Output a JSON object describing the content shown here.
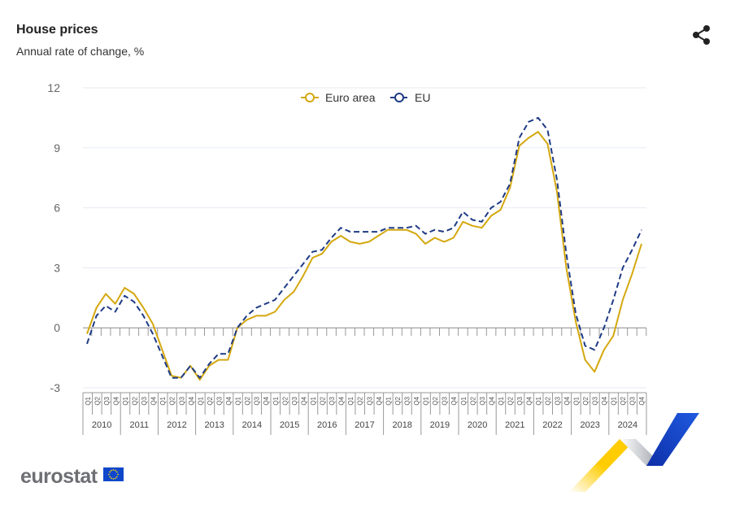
{
  "header": {
    "title": "House prices",
    "subtitle": "Annual rate of change, %"
  },
  "share_icon": "share-icon",
  "logo": {
    "text": "eurostat"
  },
  "colors": {
    "euro_area": "#d4a80f",
    "eu": "#1f3b85",
    "grid": "#e6eaf2",
    "axis": "#888888"
  },
  "chart_data": {
    "type": "line",
    "title": "House prices",
    "subtitle": "Annual rate of change, %",
    "xlabel": "",
    "ylabel": "",
    "ylim": [
      -3,
      12
    ],
    "yticks": [
      -3,
      0,
      3,
      6,
      9,
      12
    ],
    "grid": true,
    "legend_position": "top-center",
    "years": [
      "2010",
      "2011",
      "2012",
      "2013",
      "2014",
      "2015",
      "2016",
      "2017",
      "2018",
      "2019",
      "2020",
      "2021",
      "2022",
      "2023",
      "2024"
    ],
    "quarters": [
      "Q1",
      "Q2",
      "Q3",
      "Q4"
    ],
    "series": [
      {
        "name": "Euro area",
        "style": "solid",
        "values": [
          -0.3,
          1.0,
          1.7,
          1.2,
          2.0,
          1.7,
          1.0,
          0.2,
          -1.1,
          -2.4,
          -2.5,
          -1.9,
          -2.6,
          -1.9,
          -1.6,
          -1.6,
          0.0,
          0.4,
          0.6,
          0.6,
          0.8,
          1.4,
          1.8,
          2.6,
          3.5,
          3.7,
          4.3,
          4.6,
          4.3,
          4.2,
          4.3,
          4.6,
          4.9,
          4.9,
          4.9,
          4.7,
          4.2,
          4.5,
          4.3,
          4.5,
          5.3,
          5.1,
          5.0,
          5.6,
          5.9,
          7.0,
          9.1,
          9.5,
          9.8,
          9.2,
          6.8,
          3.0,
          0.3,
          -1.6,
          -2.2,
          -1.1,
          -0.4,
          1.4,
          2.7,
          4.2
        ]
      },
      {
        "name": "EU",
        "style": "dashed",
        "values": [
          -0.8,
          0.6,
          1.1,
          0.8,
          1.6,
          1.3,
          0.6,
          -0.3,
          -1.4,
          -2.5,
          -2.5,
          -1.9,
          -2.5,
          -1.8,
          -1.3,
          -1.3,
          0.0,
          0.6,
          1.0,
          1.2,
          1.4,
          2.0,
          2.6,
          3.2,
          3.8,
          3.9,
          4.5,
          5.0,
          4.8,
          4.8,
          4.8,
          4.8,
          5.0,
          5.0,
          5.0,
          5.1,
          4.7,
          4.9,
          4.8,
          5.0,
          5.8,
          5.4,
          5.3,
          6.0,
          6.3,
          7.2,
          9.5,
          10.3,
          10.5,
          9.9,
          7.4,
          3.7,
          0.7,
          -0.9,
          -1.1,
          0.0,
          1.4,
          3.0,
          3.9,
          4.9
        ]
      }
    ]
  }
}
